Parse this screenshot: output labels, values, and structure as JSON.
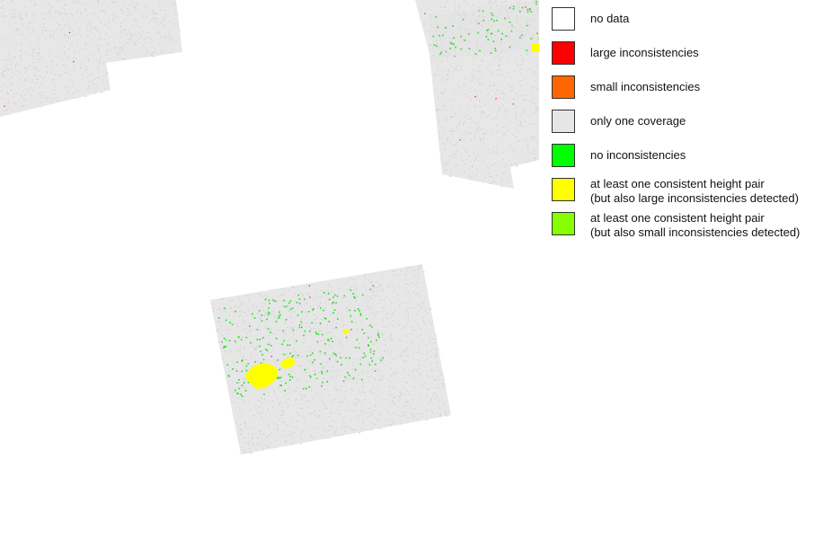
{
  "legend": {
    "items": [
      {
        "key": "no-data",
        "label": "no data",
        "color": "#ffffff"
      },
      {
        "key": "large-inconsistencies",
        "label": "large inconsistencies",
        "color": "#ff0000"
      },
      {
        "key": "small-inconsistencies",
        "label": "small inconsistencies",
        "color": "#ff6600"
      },
      {
        "key": "only-one-coverage",
        "label": "only one coverage",
        "color": "#e6e6e6"
      },
      {
        "key": "no-inconsistencies",
        "label": "no inconsistencies",
        "color": "#00ff00"
      },
      {
        "key": "consistent-pair-large",
        "label_line1": "at least one consistent height pair",
        "label_line2": "(but also large inconsistencies detected)",
        "color": "#ffff00"
      },
      {
        "key": "consistent-pair-small",
        "label_line1": "at least one consistent height pair",
        "label_line2": "(but also small inconsistencies detected)",
        "color": "#88ff00"
      }
    ]
  },
  "map": {
    "colors": {
      "coverage": "#e3e3e3",
      "consistent": "#22dd22",
      "yellow": "#ffff00",
      "red": "#ff0000"
    }
  }
}
